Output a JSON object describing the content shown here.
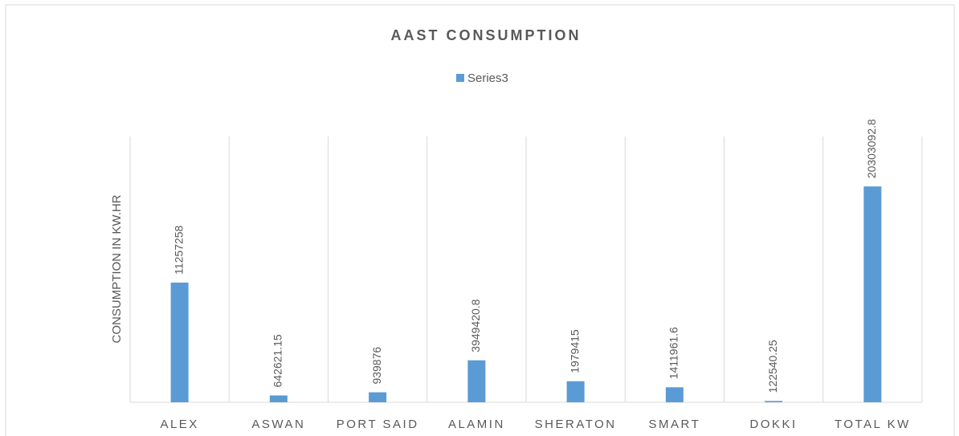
{
  "chart_data": {
    "type": "bar",
    "title": "AAST CONSUMPTION",
    "y_label": "CONSUMPTION IN KW.HR",
    "categories": [
      "ALEX",
      "ASWAN",
      "PORT SAID",
      "ALAMIN",
      "SHERATON",
      "SMART",
      "DOKKI",
      "TOTAL KW"
    ],
    "series": [
      {
        "name": "Series3",
        "color": "#5b9bd5",
        "values": [
          11257258,
          642621.15,
          939876,
          3949420.8,
          1979415,
          1411961.6,
          122540.25,
          20303092.8
        ]
      }
    ],
    "ylim": [
      0,
      25000000
    ],
    "legend": "top",
    "grid": true
  }
}
